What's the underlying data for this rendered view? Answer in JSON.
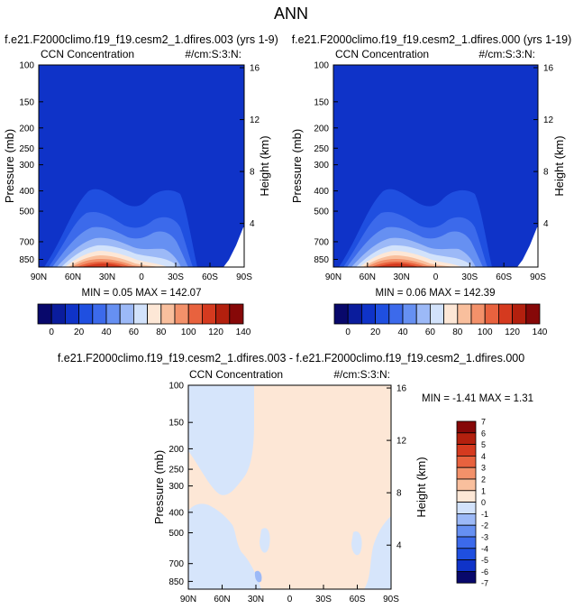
{
  "page_title": "ANN",
  "panels": [
    {
      "title": "f.e21.F2000climo.f19_f19.cesm2_1.dfires.003 (yrs 1-9)",
      "left_label": "CCN Concentration",
      "right_label": "#/cm:S:3:N:",
      "stats": "MIN =  0.05  MAX = 142.07"
    },
    {
      "title": "f.e21.F2000climo.f19_f19.cesm2_1.dfires.000 (yrs 1-19)",
      "left_label": "CCN Concentration",
      "right_label": "#/cm:S:3:N:",
      "stats": "MIN =  0.06  MAX = 142.39"
    },
    {
      "title": "f.e21.F2000climo.f19_f19.cesm2_1.dfires.003 - f.e21.F2000climo.f19_f19.cesm2_1.dfires.000",
      "left_label": "CCN Concentration",
      "right_label": "#/cm:S:3:N:",
      "stats": "MIN = -1.41  MAX =  1.31"
    }
  ],
  "chart_data": [
    {
      "type": "heatmap",
      "title": "f.e21.F2000climo.f19_f19.cesm2_1.dfires.003 (yrs 1-9)",
      "field": "CCN Concentration",
      "units": "#/cm:S:3:N:",
      "xlabel": "",
      "ylabel": "Pressure (mb)",
      "y2label": "Height (km)",
      "xticks": [
        "90N",
        "60N",
        "30N",
        "0",
        "30S",
        "60S",
        "90S"
      ],
      "yticks": [
        "100",
        "150",
        "200",
        "250",
        "300",
        "400",
        "500",
        "700",
        "850"
      ],
      "y2ticks": [
        "16",
        "12",
        "8",
        "4"
      ],
      "xlim": [
        90,
        -90
      ],
      "ylim": [
        100,
        925
      ],
      "min": 0.05,
      "max": 142.07,
      "colorbar_labels": [
        "0",
        "20",
        "40",
        "60",
        "80",
        "100",
        "120",
        "140"
      ],
      "contour_levels": [
        10,
        20,
        30,
        40,
        50,
        60,
        70,
        80,
        90,
        100,
        110,
        120,
        130,
        140
      ],
      "max_location": "30N-20N, 925 mb"
    },
    {
      "type": "heatmap",
      "title": "f.e21.F2000climo.f19_f19.cesm2_1.dfires.000 (yrs 1-19)",
      "field": "CCN Concentration",
      "units": "#/cm:S:3:N:",
      "ylabel": "Pressure (mb)",
      "y2label": "Height (km)",
      "xticks": [
        "90N",
        "60N",
        "30N",
        "0",
        "30S",
        "60S",
        "90S"
      ],
      "yticks": [
        "100",
        "150",
        "200",
        "250",
        "300",
        "400",
        "500",
        "700",
        "850"
      ],
      "y2ticks": [
        "16",
        "12",
        "8",
        "4"
      ],
      "xlim": [
        90,
        -90
      ],
      "ylim": [
        100,
        925
      ],
      "min": 0.06,
      "max": 142.39,
      "colorbar_labels": [
        "0",
        "20",
        "40",
        "60",
        "80",
        "100",
        "120",
        "140"
      ],
      "contour_levels": [
        10,
        20,
        30,
        40,
        50,
        60,
        70,
        80,
        90,
        100,
        110,
        120,
        130,
        140
      ],
      "max_location": "30N-20N, 925 mb"
    },
    {
      "type": "heatmap",
      "title": "f.e21.F2000climo.f19_f19.cesm2_1.dfires.003 - f.e21.F2000climo.f19_f19.cesm2_1.dfires.000",
      "field": "CCN Concentration",
      "units": "#/cm:S:3:N:",
      "ylabel": "Pressure (mb)",
      "y2label": "Height (km)",
      "xticks": [
        "90N",
        "60N",
        "30N",
        "0",
        "30S",
        "60S",
        "90S"
      ],
      "yticks": [
        "100",
        "150",
        "200",
        "250",
        "300",
        "400",
        "500",
        "700",
        "850"
      ],
      "y2ticks": [
        "16",
        "12",
        "8",
        "4"
      ],
      "xlim": [
        90,
        -90
      ],
      "ylim": [
        100,
        925
      ],
      "min": -1.41,
      "max": 1.31,
      "colorbar_labels": [
        "7",
        "6",
        "5",
        "4",
        "3",
        "2",
        "1",
        "0",
        "-1",
        "-2",
        "-3",
        "-4",
        "-5",
        "-6",
        "-7"
      ],
      "dominant_ranges": [
        "0 to 1",
        "-1 to 0"
      ]
    }
  ],
  "colorscales": {
    "seq": [
      "#08086b",
      "#0a1c9c",
      "#0f33c8",
      "#1f4fe0",
      "#3c6aeb",
      "#6690f2",
      "#9cb9f7",
      "#d2e2fb",
      "#fde7d6",
      "#f9bf9d",
      "#f3916a",
      "#e8623e",
      "#d53a1f",
      "#b3200e",
      "#860808"
    ],
    "div": [
      "#860808",
      "#b3200e",
      "#d53a1f",
      "#e8623e",
      "#f3916a",
      "#f9bf9d",
      "#fde7d6",
      "#d2e2fb",
      "#9cb9f7",
      "#6690f2",
      "#3c6aeb",
      "#1f4fe0",
      "#0f33c8",
      "#08086b"
    ]
  }
}
